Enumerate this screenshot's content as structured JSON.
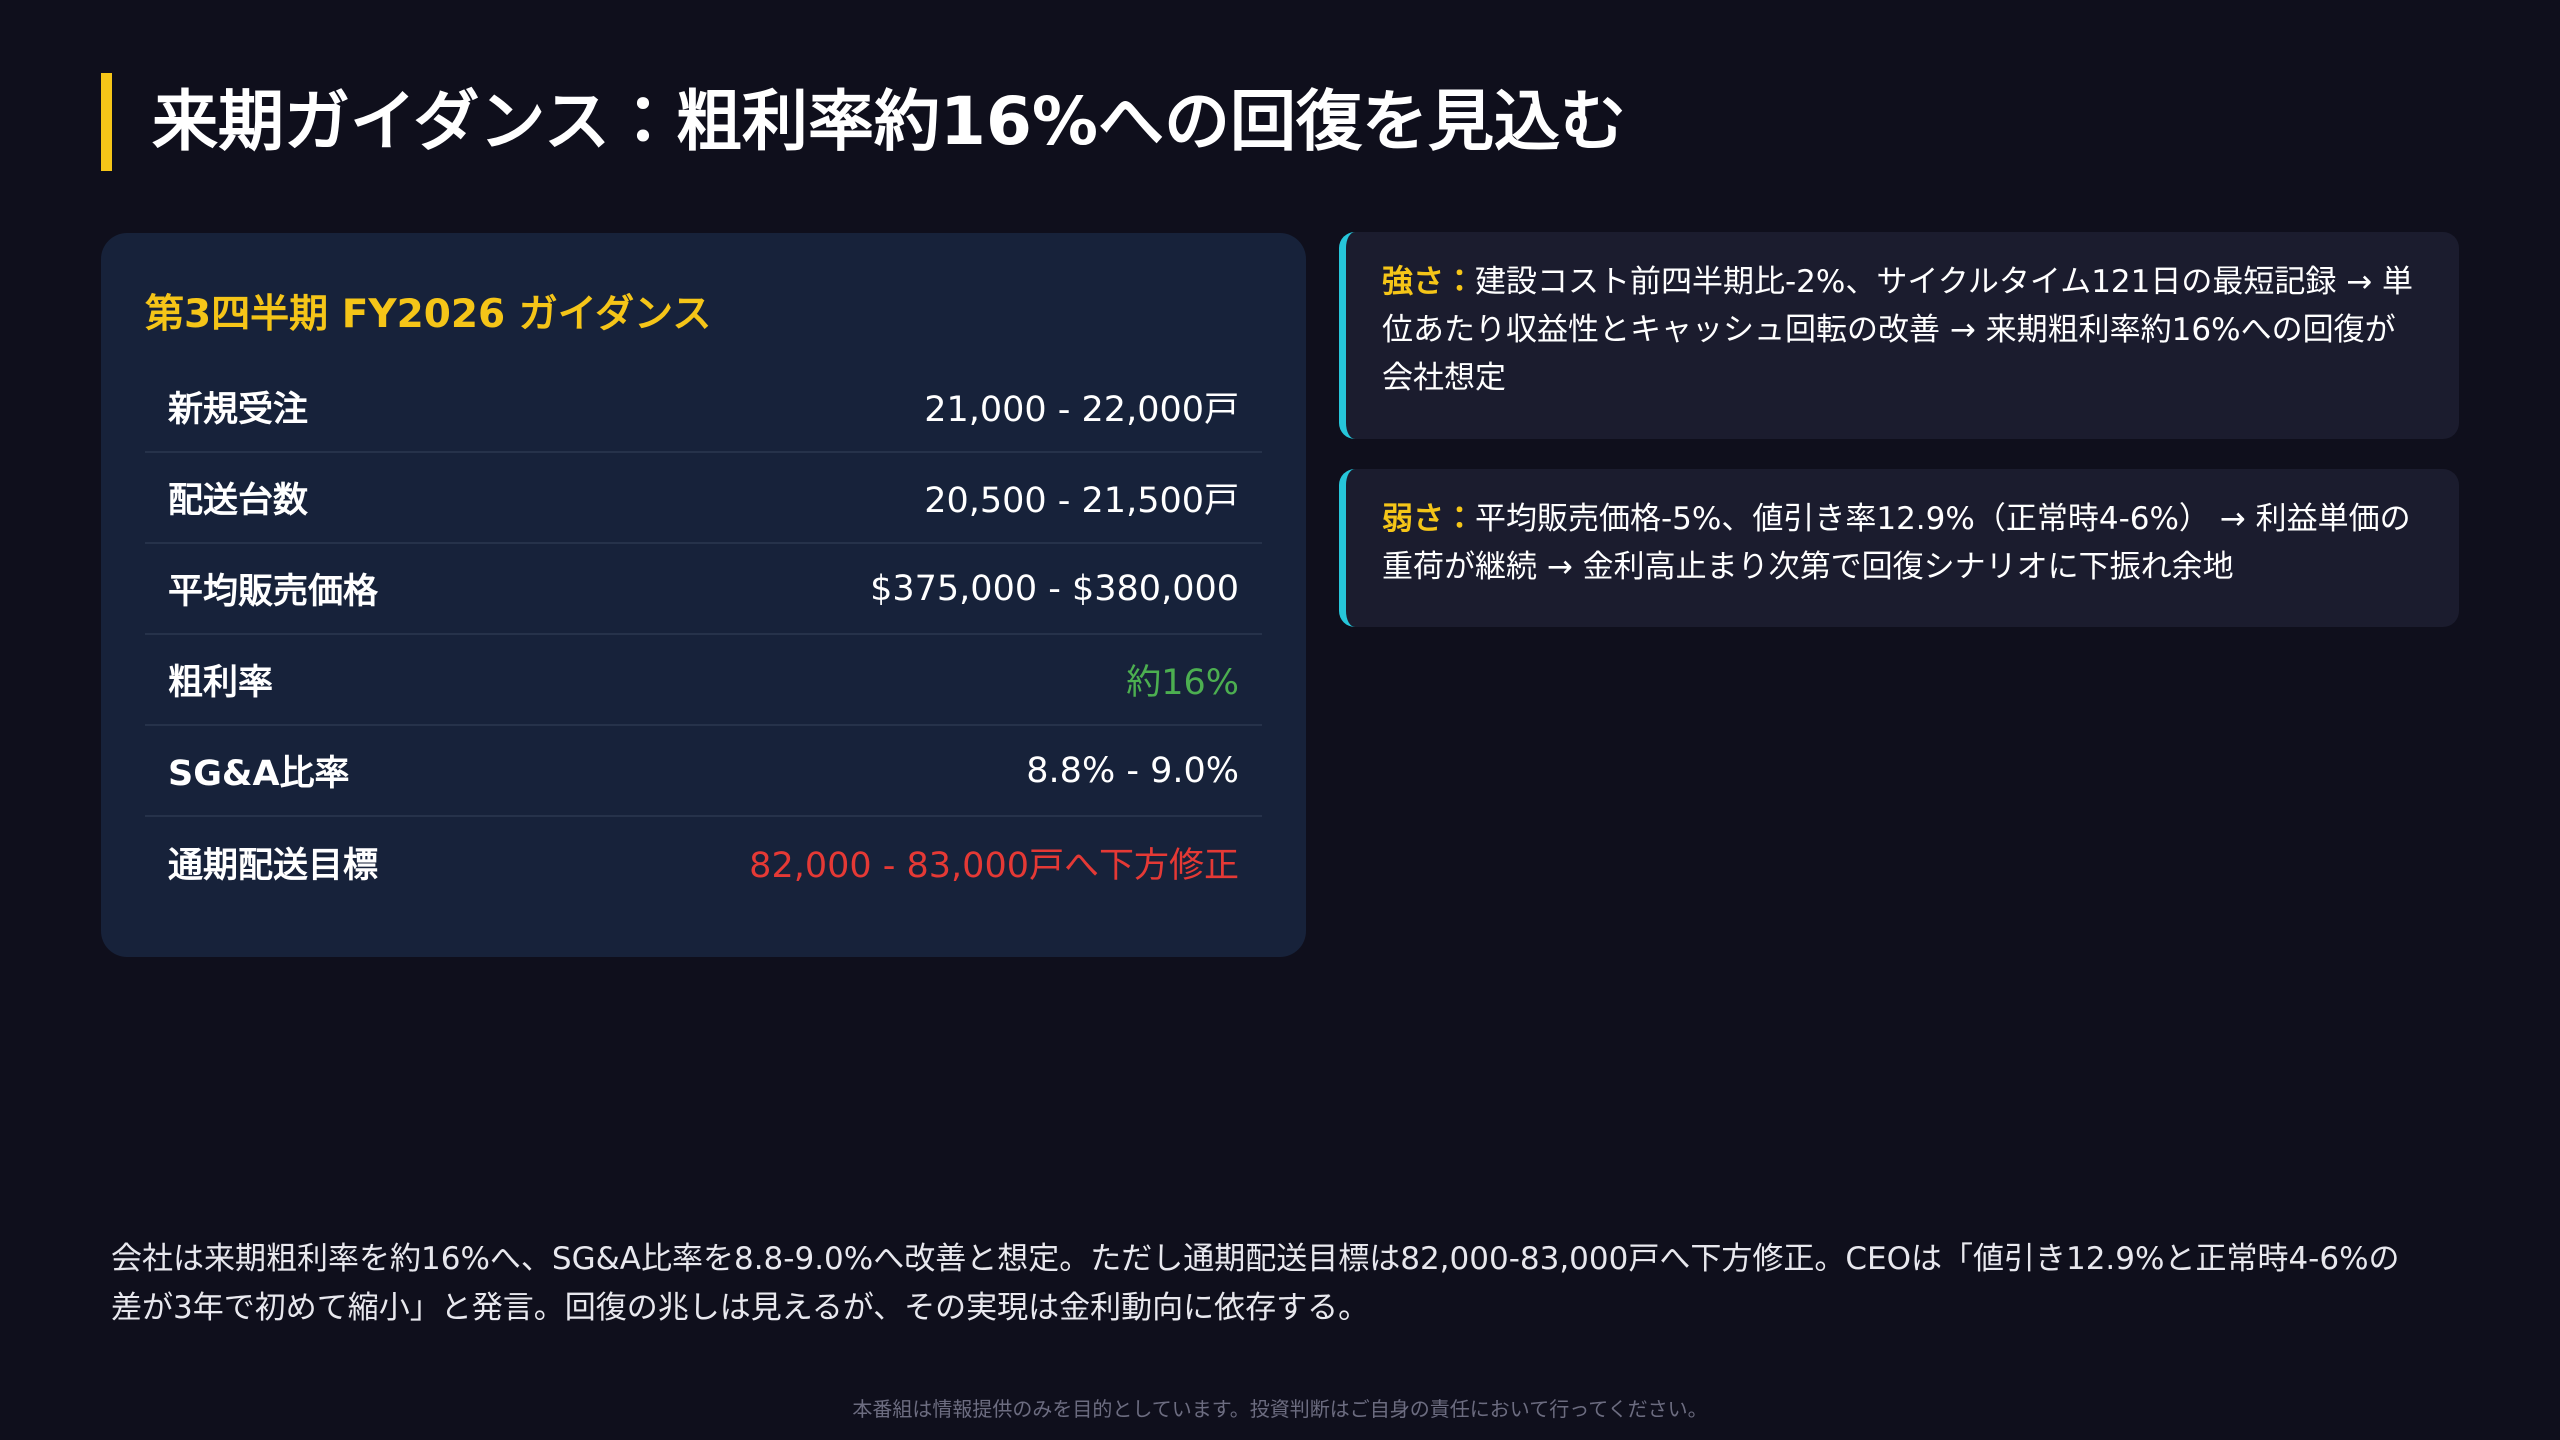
{
  "header": {
    "title": "来期ガイダンス：粗利率約16%への回復を見込む"
  },
  "guidance": {
    "heading": "第3四半期 FY2026 ガイダンス",
    "rows": [
      [
        "新規受注",
        "21,000 - 22,000戸"
      ],
      [
        "配送台数",
        "20,500 - 21,500戸"
      ],
      [
        "平均販売価格",
        "$375,000 - $380,000"
      ],
      [
        "粗利率",
        "約16%"
      ],
      [
        "SG&A比率",
        "8.8% - 9.0%"
      ],
      [
        "通期配送目標",
        "82,000 - 83,000戸へ下方修正"
      ]
    ]
  },
  "notes": [
    {
      "label": "強さ：",
      "text": "建設コスト前四半期比-2%、サイクルタイム121日の最短記録 → 単位あたり収益性とキャッシュ回転の改善 → 来期粗利率約16%への回復が会社想定"
    },
    {
      "label": "弱さ：",
      "text": "平均販売価格-5%、値引き率12.9%（正常時4-6%） → 利益単価の重荷が継続 → 金利高止まり次第で回復シナリオに下振れ余地"
    }
  ],
  "summary": "会社は来期粗利率を約16%へ、SG&A比率を8.8-9.0%へ改善と想定。ただし通期配送目標は82,000-83,000戸へ下方修正。CEOは「値引き12.9%と正常時4-6%の差が3年で初めて縮小」と発言。回復の兆しは見えるが、その実現は金利動向に依存する。",
  "disclaimer": "本番組は情報提供のみを目的としています。投資判断はご自身の責任において行ってください。"
}
